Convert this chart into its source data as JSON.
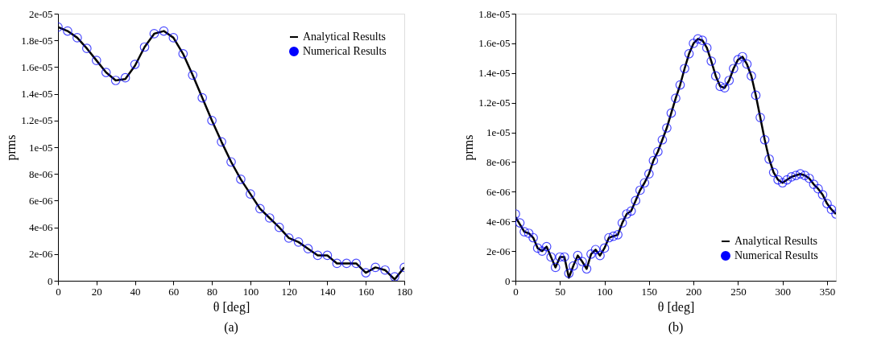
{
  "chart_data": [
    {
      "type": "line",
      "xlabel": "θ [deg]",
      "ylabel": "prms",
      "annotations": [
        "(a)"
      ],
      "legend": "top right",
      "grid": false,
      "line_style": "solid",
      "xlim": [
        0,
        180
      ],
      "xticks": [
        0,
        20,
        40,
        60,
        80,
        100,
        120,
        140,
        160,
        180
      ],
      "ylim": [
        0,
        2e-05
      ],
      "yticks": [
        {
          "value": 0,
          "label": "0"
        },
        {
          "value": 2e-06,
          "label": "2e-06"
        },
        {
          "value": 4e-06,
          "label": "4e-06"
        },
        {
          "value": 6e-06,
          "label": "6e-06"
        },
        {
          "value": 8e-06,
          "label": "8e-06"
        },
        {
          "value": 1e-05,
          "label": "1e-05"
        },
        {
          "value": 1.2e-05,
          "label": "1.2e-05"
        },
        {
          "value": 1.4e-05,
          "label": "1.4e-05"
        },
        {
          "value": 1.6e-05,
          "label": "1.6e-05"
        },
        {
          "value": 1.8e-05,
          "label": "1.8e-05"
        },
        {
          "value": 2e-05,
          "label": "2e-05"
        }
      ],
      "x": [
        0,
        5,
        10,
        15,
        20,
        25,
        30,
        35,
        40,
        45,
        50,
        55,
        60,
        65,
        70,
        75,
        80,
        85,
        90,
        95,
        100,
        105,
        110,
        115,
        120,
        125,
        130,
        135,
        140,
        145,
        150,
        155,
        160,
        165,
        170,
        175,
        180
      ],
      "series": [
        {
          "name": "Analytical Results",
          "type": "line",
          "color": "#000000",
          "values": [
            1.9e-05,
            1.87e-05,
            1.82e-05,
            1.74e-05,
            1.65e-05,
            1.56e-05,
            1.5e-05,
            1.51e-05,
            1.61e-05,
            1.75e-05,
            1.85e-05,
            1.87e-05,
            1.82e-05,
            1.7e-05,
            1.54e-05,
            1.37e-05,
            1.2e-05,
            1.04e-05,
            8.9e-06,
            7.6e-06,
            6.5e-06,
            5.4e-06,
            4.7e-06,
            4e-06,
            3.2e-06,
            2.9e-06,
            2.4e-06,
            1.9e-06,
            1.9e-06,
            1.3e-06,
            1.3e-06,
            1.3e-06,
            6e-07,
            1e-06,
            8e-07,
            1e-07,
            1e-06
          ]
        },
        {
          "name": "Numerical Results",
          "type": "scatter",
          "marker": "circle",
          "color": "#0000ff",
          "values": [
            1.9e-05,
            1.87e-05,
            1.82e-05,
            1.74e-05,
            1.65e-05,
            1.56e-05,
            1.5e-05,
            1.52e-05,
            1.62e-05,
            1.75e-05,
            1.85e-05,
            1.87e-05,
            1.82e-05,
            1.7e-05,
            1.54e-05,
            1.37e-05,
            1.2e-05,
            1.04e-05,
            8.9e-06,
            7.6e-06,
            6.5e-06,
            5.4e-06,
            4.7e-06,
            4e-06,
            3.2e-06,
            2.9e-06,
            2.4e-06,
            1.9e-06,
            1.9e-06,
            1.3e-06,
            1.3e-06,
            1.3e-06,
            6e-07,
            1e-06,
            8e-07,
            3e-07,
            1e-06
          ]
        }
      ]
    },
    {
      "type": "line",
      "xlabel": "θ [deg]",
      "ylabel": "prms",
      "annotations": [
        "(b)"
      ],
      "legend": "bottom right",
      "grid": false,
      "line_style": "solid",
      "xlim": [
        0,
        360
      ],
      "xticks": [
        0,
        50,
        100,
        150,
        200,
        250,
        300,
        350
      ],
      "ylim": [
        0,
        1.8e-05
      ],
      "yticks": [
        {
          "value": 0,
          "label": "0"
        },
        {
          "value": 2e-06,
          "label": "2e-06"
        },
        {
          "value": 4e-06,
          "label": "4e-06"
        },
        {
          "value": 6e-06,
          "label": "6e-06"
        },
        {
          "value": 8e-06,
          "label": "8e-06"
        },
        {
          "value": 1e-05,
          "label": "1e-05"
        },
        {
          "value": 1.2e-05,
          "label": "1.2e-05"
        },
        {
          "value": 1.4e-05,
          "label": "1.4e-05"
        },
        {
          "value": 1.6e-05,
          "label": "1.6e-05"
        },
        {
          "value": 1.8e-05,
          "label": "1.8e-05"
        }
      ],
      "x": [
        0,
        5,
        10,
        15,
        20,
        25,
        30,
        35,
        40,
        45,
        50,
        55,
        60,
        65,
        70,
        75,
        80,
        85,
        90,
        95,
        100,
        105,
        110,
        115,
        120,
        125,
        130,
        135,
        140,
        145,
        150,
        155,
        160,
        165,
        170,
        175,
        180,
        185,
        190,
        195,
        200,
        205,
        210,
        215,
        220,
        225,
        230,
        235,
        240,
        245,
        250,
        255,
        260,
        265,
        270,
        275,
        280,
        285,
        290,
        295,
        300,
        305,
        310,
        315,
        320,
        325,
        330,
        335,
        340,
        345,
        350,
        355,
        360
      ],
      "series": [
        {
          "name": "Analytical Results",
          "type": "line",
          "color": "#000000",
          "values": [
            4.3e-06,
            3.8e-06,
            3.3e-06,
            3.2e-06,
            2.9e-06,
            2.2e-06,
            2e-06,
            2.3e-06,
            1.6e-06,
            9e-07,
            1.6e-06,
            1.6e-06,
            2e-07,
            1e-06,
            1.7e-06,
            1.3e-06,
            8e-07,
            1.8e-06,
            2.1e-06,
            1.7e-06,
            2.2e-06,
            2.9e-06,
            3e-06,
            3.1e-06,
            3.9e-06,
            4.5e-06,
            4.7e-06,
            5.4e-06,
            6.1e-06,
            6.6e-06,
            7.2e-06,
            8.1e-06,
            8.7e-06,
            9.5e-06,
            1.03e-05,
            1.13e-05,
            1.23e-05,
            1.32e-05,
            1.43e-05,
            1.53e-05,
            1.6e-05,
            1.63e-05,
            1.62e-05,
            1.57e-05,
            1.48e-05,
            1.38e-05,
            1.31e-05,
            1.3e-05,
            1.35e-05,
            1.43e-05,
            1.49e-05,
            1.51e-05,
            1.46e-05,
            1.38e-05,
            1.25e-05,
            1.1e-05,
            9.5e-06,
            8.2e-06,
            7.3e-06,
            6.8e-06,
            6.6e-06,
            6.8e-06,
            7e-06,
            7.1e-06,
            7.2e-06,
            7.1e-06,
            6.9e-06,
            6.5e-06,
            6.2e-06,
            5.8e-06,
            5.2e-06,
            4.8e-06,
            4.5e-06
          ]
        },
        {
          "name": "Numerical Results",
          "type": "scatter",
          "marker": "circle",
          "color": "#0000ff",
          "values": [
            4.5e-06,
            3.9e-06,
            3.3e-06,
            3.2e-06,
            2.9e-06,
            2.2e-06,
            2e-06,
            2.3e-06,
            1.6e-06,
            9e-07,
            1.6e-06,
            1.6e-06,
            5e-07,
            1e-06,
            1.7e-06,
            1.3e-06,
            8e-07,
            1.8e-06,
            2.1e-06,
            1.7e-06,
            2.2e-06,
            2.9e-06,
            3e-06,
            3.1e-06,
            3.9e-06,
            4.5e-06,
            4.7e-06,
            5.4e-06,
            6.1e-06,
            6.6e-06,
            7.2e-06,
            8.1e-06,
            8.7e-06,
            9.5e-06,
            1.03e-05,
            1.13e-05,
            1.23e-05,
            1.32e-05,
            1.43e-05,
            1.53e-05,
            1.6e-05,
            1.63e-05,
            1.62e-05,
            1.57e-05,
            1.48e-05,
            1.38e-05,
            1.31e-05,
            1.3e-05,
            1.35e-05,
            1.43e-05,
            1.49e-05,
            1.51e-05,
            1.46e-05,
            1.38e-05,
            1.25e-05,
            1.1e-05,
            9.5e-06,
            8.2e-06,
            7.3e-06,
            6.8e-06,
            6.6e-06,
            6.8e-06,
            7e-06,
            7.1e-06,
            7.2e-06,
            7.1e-06,
            6.9e-06,
            6.5e-06,
            6.2e-06,
            5.8e-06,
            5.2e-06,
            4.8e-06,
            4.5e-06
          ]
        }
      ]
    }
  ]
}
